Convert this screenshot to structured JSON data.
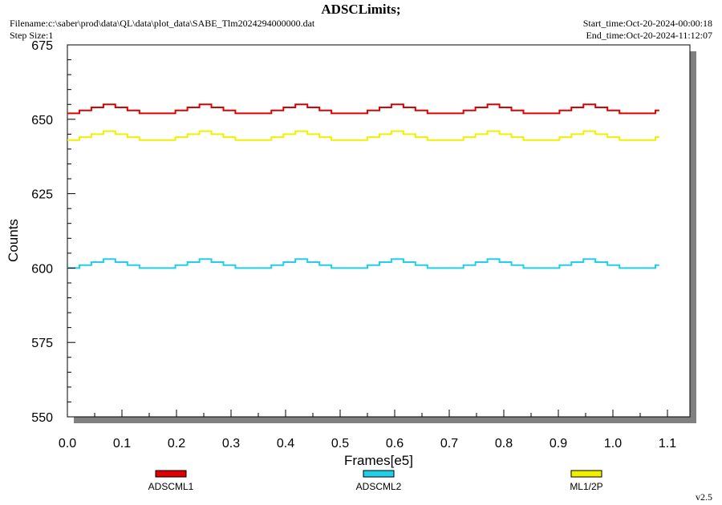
{
  "header": {
    "title": "ADSCLimits;",
    "filename": "Filename:c:\\saber\\prod\\data\\QL\\data\\plot_data\\SABE_Tlm2024294000000.dat",
    "step_size": "Step Size:1",
    "start_time": "Start_time:Oct-20-2024-00:00:18",
    "end_time": "End_time:Oct-20-2024-11:12:07"
  },
  "footer": {
    "version": "v2.5"
  },
  "colors": {
    "plot_bg": "#ffffff",
    "shadow": "#808080"
  },
  "chart_data": {
    "type": "line",
    "xlabel": "Frames[e5]",
    "ylabel": "Counts",
    "xlim": [
      0,
      1.15
    ],
    "ylim": [
      550,
      675
    ],
    "xticks": [
      "0.0",
      "0.1",
      "0.2",
      "0.3",
      "0.4",
      "0.5",
      "0.6",
      "0.7",
      "0.8",
      "0.9",
      "1.0",
      "1.1"
    ],
    "yticks": [
      "550",
      "575",
      "600",
      "625",
      "650",
      "675"
    ],
    "x_start": 0.0,
    "x_end": 1.085,
    "period": 0.176,
    "series": [
      {
        "name": "ADSCML1",
        "color": "#e00000",
        "base": 652,
        "amplitude": 3
      },
      {
        "name": "ADSCML2",
        "color": "#20d0e8",
        "base": 600,
        "amplitude": 3
      },
      {
        "name": "ML1/2P",
        "color": "#f0f000",
        "base": 643,
        "amplitude": 3
      }
    ]
  }
}
